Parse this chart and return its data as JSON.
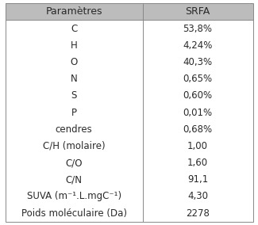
{
  "header": [
    "Paramètres",
    "SRFA"
  ],
  "rows": [
    [
      "C",
      "53,8%"
    ],
    [
      "H",
      "4,24%"
    ],
    [
      "O",
      "40,3%"
    ],
    [
      "N",
      "0,65%"
    ],
    [
      "S",
      "0,60%"
    ],
    [
      "P",
      "0,01%"
    ],
    [
      "cendres",
      "0,68%"
    ],
    [
      "C/H (molaire)",
      "1,00"
    ],
    [
      "C/O",
      "1,60"
    ],
    [
      "C/N",
      "91,1"
    ],
    [
      "SUVA (m⁻¹.L.mgC⁻¹)",
      "4,30"
    ],
    [
      "Poids moléculaire (Da)",
      "2278"
    ]
  ],
  "header_bg": "#bcbcbc",
  "header_fontsize": 9.0,
  "row_fontsize": 8.5,
  "col_split": 0.555,
  "table_bg": "#ffffff",
  "border_color": "#888888",
  "text_color": "#2a2a2a",
  "fig_width": 3.25,
  "fig_height": 2.84,
  "dpi": 100
}
